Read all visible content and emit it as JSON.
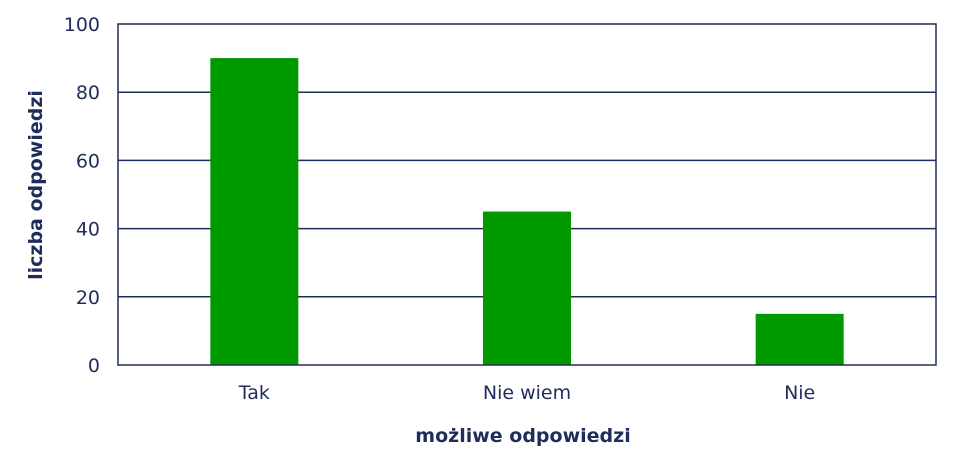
{
  "chart_data": {
    "type": "bar",
    "categories": [
      "Tak",
      "Nie wiem",
      "Nie"
    ],
    "values": [
      90,
      45,
      15
    ],
    "title": "",
    "xlabel": "możliwe odpowiedzi",
    "ylabel": "liczba odpowiedzi",
    "ylim": [
      0,
      100
    ],
    "yticks": [
      "0",
      "20",
      "40",
      "60",
      "80",
      "100"
    ],
    "grid": true,
    "legend": "none",
    "colors": {
      "bar": "#009900",
      "axis": "#1f2d5a",
      "text": "#1f2d5a"
    }
  }
}
